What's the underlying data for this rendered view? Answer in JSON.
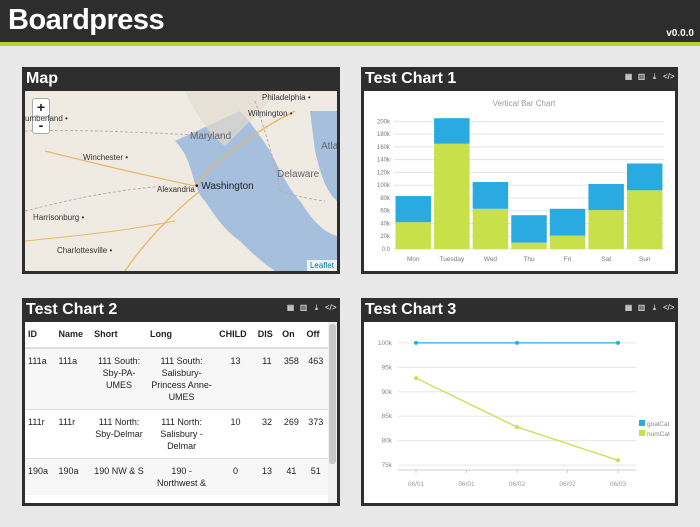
{
  "header": {
    "brand": "Boardpress",
    "version": "v0.0.0"
  },
  "colors": {
    "accent": "#b5d130",
    "series_blue": "#29abe2",
    "series_green": "#c8e04a"
  },
  "panels": {
    "map": {
      "title": "Map"
    },
    "chart1": {
      "title": "Test Chart 1"
    },
    "chart2": {
      "title": "Test Chart 2"
    },
    "chart3": {
      "title": "Test Chart 3"
    }
  },
  "panel_tools": [
    "table-icon",
    "bar-chart-icon",
    "download-icon",
    "code-icon"
  ],
  "map": {
    "zoom_in": "+",
    "zoom_out": "-",
    "attribution": "Leaflet",
    "places": [
      {
        "name": "Philadelphia",
        "type": "city"
      },
      {
        "name": "Wilmington",
        "type": "city"
      },
      {
        "name": "umberland",
        "type": "city"
      },
      {
        "name": "Maryland",
        "type": "region"
      },
      {
        "name": "Winchester",
        "type": "city"
      },
      {
        "name": "Alexandria",
        "type": "city"
      },
      {
        "name": "Washington",
        "type": "capital"
      },
      {
        "name": "Delaware",
        "type": "region"
      },
      {
        "name": "Atla",
        "type": "region"
      },
      {
        "name": "Harrisonburg",
        "type": "city"
      },
      {
        "name": "Charlottesville",
        "type": "city"
      }
    ]
  },
  "chart1_data": {
    "type": "bar",
    "title": "Vertical Bar Chart",
    "categories": [
      "Mon",
      "Tuesday",
      "Wed",
      "Thu",
      "Fri",
      "Sat",
      "Sun"
    ],
    "series": [
      {
        "values": [
          42,
          165,
          63,
          10,
          21,
          61,
          92
        ]
      },
      {
        "values": [
          41,
          40,
          42,
          43,
          42,
          41,
          42
        ]
      }
    ],
    "yticks": [
      "0.0",
      "20k",
      "40k",
      "60k",
      "80k",
      "100k",
      "120k",
      "140k",
      "160k",
      "180k",
      "200k"
    ],
    "ylim": [
      0,
      210
    ]
  },
  "table": {
    "columns": [
      "ID",
      "Name",
      "Short",
      "Long",
      "CHILD",
      "DIS",
      "On",
      "Off"
    ],
    "rows": [
      {
        "id": "111a",
        "name": "111a",
        "short": "111 South: Sby-PA-UMES",
        "long": "111 South: Salisbury-Princess Anne-UMES",
        "child": "13",
        "dis": "11",
        "on": "358",
        "off": "463"
      },
      {
        "id": "111r",
        "name": "111r",
        "short": "111 North: Sby-Delmar",
        "long": "111 North: Salisbury - Delmar",
        "child": "10",
        "dis": "32",
        "on": "269",
        "off": "373"
      },
      {
        "id": "190a",
        "name": "190a",
        "short": "190 NW & S",
        "long": "190 - Northwest &",
        "child": "0",
        "dis": "13",
        "on": "41",
        "off": "51"
      }
    ]
  },
  "chart3_data": {
    "type": "line",
    "x": [
      "06/01",
      "06/01",
      "06/02",
      "06/02",
      "06/03"
    ],
    "yticks": [
      "75k",
      "80k",
      "85k",
      "90k",
      "95k",
      "100k"
    ],
    "ylim": [
      74,
      101
    ],
    "series": [
      {
        "name": "goalCat",
        "color": "#29abe2",
        "x_idx": [
          0,
          2,
          4
        ],
        "values": [
          100,
          100,
          100
        ]
      },
      {
        "name": "numCat",
        "color": "#c8e04a",
        "x_idx": [
          0,
          2,
          4
        ],
        "values": [
          92.8,
          82.8,
          76
        ]
      }
    ]
  }
}
